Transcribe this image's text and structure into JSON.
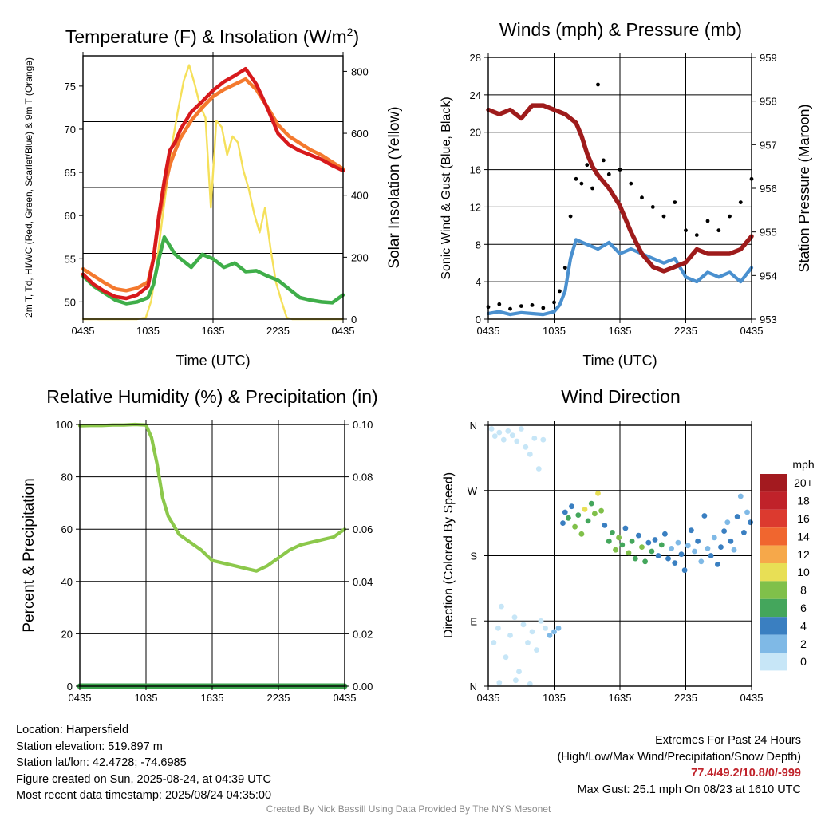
{
  "chart_data": [
    {
      "type": "line",
      "title": "Temperature (F) & Insolation (W/m²)",
      "xlabel": "Time (UTC)",
      "ylabel": "2m T, Td, HI/WC (Red, Green, Scarlet/Blue) & 9m T (Orange)",
      "ylabel2": "Solar Insolation (Yellow)",
      "x_ticks": [
        "0435",
        "1035",
        "1635",
        "2235",
        "0435"
      ],
      "y_ticks": [
        50,
        55,
        60,
        65,
        70,
        75
      ],
      "y2_ticks": [
        0,
        200,
        400,
        600,
        800
      ],
      "ylim": [
        48,
        78.5
      ],
      "y2lim": [
        0,
        850
      ],
      "series": [
        {
          "name": "2m T",
          "axis": "left",
          "color": "#d7191c",
          "x": [
            0,
            1,
            2,
            3,
            4,
            5,
            6,
            6.5,
            7,
            7.5,
            8,
            8.5,
            9,
            10,
            11,
            12,
            13,
            14,
            15,
            16,
            17,
            18,
            19,
            20,
            21,
            22,
            23,
            24
          ],
          "y": [
            53.2,
            52.0,
            51.2,
            50.6,
            50.4,
            50.8,
            51.8,
            55,
            60,
            64,
            67.5,
            68.5,
            70,
            72,
            73.2,
            74.5,
            75.5,
            76.2,
            77.0,
            75.2,
            72.5,
            69.5,
            68.2,
            67.5,
            67.0,
            66.5,
            65.8,
            65.2
          ]
        },
        {
          "name": "9m T",
          "axis": "left",
          "color": "#f4792e",
          "x": [
            0,
            1,
            2,
            3,
            4,
            5,
            6,
            6.5,
            7,
            7.5,
            8,
            8.5,
            9,
            10,
            11,
            12,
            13,
            14,
            15,
            16,
            17,
            18,
            19,
            20,
            21,
            22,
            23,
            24
          ],
          "y": [
            53.8,
            53.0,
            52.2,
            51.5,
            51.3,
            51.6,
            52.3,
            55,
            59.5,
            63.0,
            65.8,
            67.5,
            69.0,
            71.0,
            72.5,
            73.8,
            74.6,
            75.2,
            75.8,
            74.6,
            72.6,
            70.5,
            69.2,
            68.4,
            67.6,
            67.0,
            66.2,
            65.4
          ]
        },
        {
          "name": "Td",
          "axis": "left",
          "color": "#3fae49",
          "x": [
            0,
            1,
            2,
            3,
            4,
            5,
            6,
            6.5,
            7,
            7.5,
            8,
            8.5,
            9,
            10,
            11,
            12,
            13,
            14,
            15,
            16,
            17,
            18,
            19,
            20,
            21,
            22,
            23,
            24
          ],
          "y": [
            53.0,
            51.8,
            51.0,
            50.2,
            49.8,
            50.0,
            50.5,
            52,
            55,
            57.5,
            56.5,
            55.5,
            55.0,
            54.0,
            55.5,
            55.0,
            54.0,
            54.5,
            53.5,
            53.6,
            53.0,
            52.5,
            51.5,
            50.5,
            50.2,
            50.0,
            49.9,
            50.8
          ]
        },
        {
          "name": "Solar Insolation",
          "axis": "right",
          "color": "#f5e05a",
          "x": [
            0,
            5,
            5.8,
            6.3,
            6.8,
            7.3,
            7.8,
            8.3,
            8.8,
            9.3,
            9.8,
            10.3,
            10.8,
            11.3,
            11.8,
            12.3,
            12.8,
            13.3,
            13.8,
            14.3,
            14.8,
            15.3,
            15.8,
            16.3,
            16.8,
            17.3,
            17.8,
            18.3,
            18.8,
            19.3,
            19.8,
            24
          ],
          "y": [
            0,
            0,
            5,
            60,
            180,
            320,
            450,
            580,
            680,
            770,
            820,
            760,
            690,
            650,
            360,
            640,
            620,
            530,
            590,
            570,
            480,
            420,
            340,
            280,
            360,
            230,
            120,
            60,
            5,
            0,
            0,
            0
          ]
        }
      ]
    },
    {
      "type": "line",
      "title": "Winds (mph) & Pressure (mb)",
      "xlabel": "Time (UTC)",
      "ylabel": "Sonic Wind & Gust (Blue, Black)",
      "ylabel2": "Station Pressure (Maroon)",
      "x_ticks": [
        "0435",
        "1035",
        "1635",
        "2235",
        "0435"
      ],
      "y_ticks": [
        0,
        4,
        8,
        12,
        16,
        20,
        24,
        28
      ],
      "y2_ticks": [
        953,
        954,
        955,
        956,
        957,
        958,
        959
      ],
      "ylim": [
        0,
        28
      ],
      "y2lim": [
        953,
        959
      ],
      "series": [
        {
          "name": "Sonic Wind",
          "axis": "left",
          "color": "#4a90cf",
          "x": [
            0,
            1,
            2,
            3,
            4,
            5,
            6,
            6.5,
            7,
            7.5,
            8,
            9,
            10,
            11,
            12,
            13,
            14,
            15,
            16,
            17,
            18,
            19,
            20,
            21,
            22,
            23,
            24
          ],
          "y": [
            0.6,
            0.8,
            0.5,
            0.7,
            0.6,
            0.5,
            0.8,
            1.5,
            3.0,
            6.5,
            8.5,
            8.0,
            7.5,
            8.2,
            7.0,
            7.5,
            7.0,
            6.5,
            6.0,
            6.5,
            4.5,
            4.0,
            5.0,
            4.5,
            5.0,
            4.0,
            5.5
          ]
        },
        {
          "name": "Gust",
          "axis": "left",
          "color": "#000000",
          "x": [
            0,
            1,
            2,
            3,
            4,
            5,
            6,
            6.5,
            7,
            7.5,
            8,
            8.5,
            9,
            9.5,
            10,
            10.5,
            11,
            12,
            13,
            14,
            15,
            16,
            17,
            18,
            19,
            20,
            21,
            22,
            23,
            24
          ],
          "y": [
            1.3,
            1.6,
            1.1,
            1.4,
            1.5,
            1.2,
            1.8,
            3.0,
            5.5,
            11.0,
            15.0,
            14.5,
            16.5,
            14.0,
            25.1,
            17.0,
            15.5,
            16.0,
            14.5,
            13.0,
            12.0,
            11.0,
            12.5,
            9.5,
            9.0,
            10.5,
            9.5,
            11.0,
            12.5,
            15.0
          ]
        },
        {
          "name": "Station Pressure",
          "axis": "right",
          "color": "#9e1b1b",
          "x": [
            0,
            1,
            2,
            3,
            4,
            5,
            6,
            7,
            8,
            8.5,
            9,
            9.5,
            10,
            11,
            12,
            13,
            14,
            15,
            16,
            17,
            18,
            19,
            20,
            21,
            22,
            23,
            24
          ],
          "y": [
            957.8,
            957.7,
            957.8,
            957.6,
            957.9,
            957.9,
            957.8,
            957.7,
            957.5,
            957.2,
            956.8,
            956.5,
            956.3,
            956.0,
            955.6,
            955.0,
            954.5,
            954.2,
            954.1,
            954.2,
            954.3,
            954.6,
            954.5,
            954.5,
            954.5,
            954.6,
            954.9
          ]
        }
      ]
    },
    {
      "type": "line",
      "title": "Relative Humidity (%) & Precipitation (in)",
      "xlabel": "",
      "ylabel": "Percent & Precipitation",
      "x_ticks": [
        "0435",
        "1035",
        "1635",
        "2235",
        "0435"
      ],
      "y_ticks": [
        0,
        20,
        40,
        60,
        80,
        100
      ],
      "y2_ticks": [
        "0.00",
        "0.02",
        "0.04",
        "0.06",
        "0.08",
        "0.10"
      ],
      "ylim": [
        0,
        100
      ],
      "y2lim": [
        0,
        0.1
      ],
      "series": [
        {
          "name": "Relative Humidity",
          "axis": "left",
          "color": "#8cc84b",
          "x": [
            0,
            1,
            2,
            3,
            4,
            5,
            6,
            6.5,
            7,
            7.5,
            8,
            9,
            10,
            11,
            12,
            13,
            14,
            15,
            16,
            17,
            18,
            19,
            20,
            21,
            22,
            23,
            24
          ],
          "y": [
            99.5,
            99.6,
            99.6,
            99.8,
            99.8,
            100,
            99.8,
            95,
            85,
            72,
            65,
            58,
            55,
            52,
            48,
            47,
            46,
            45,
            44,
            46,
            49,
            52,
            54,
            55,
            56,
            57,
            60
          ]
        },
        {
          "name": "Precipitation",
          "axis": "right",
          "color": "#3aa14a",
          "x": [
            0,
            24
          ],
          "y": [
            0,
            0
          ]
        }
      ]
    },
    {
      "type": "scatter",
      "title": "Wind Direction",
      "xlabel": "",
      "ylabel": "Direction (Colored By Speed)",
      "x_ticks": [
        "0435",
        "1035",
        "1635",
        "2235",
        "0435"
      ],
      "y_tick_labels": [
        "N",
        "E",
        "S",
        "W",
        "N"
      ],
      "ylim": [
        0,
        360
      ],
      "colorbar": {
        "title": "mph",
        "labels": [
          "20+",
          "18",
          "16",
          "14",
          "12",
          "10",
          "8",
          "6",
          "4",
          "2",
          "0"
        ],
        "colors": [
          "#a31a1f",
          "#c0222a",
          "#dc3a2f",
          "#f0662f",
          "#f6a84a",
          "#e8df55",
          "#80c04a",
          "#44a65c",
          "#3a7fc1",
          "#7fb9e6",
          "#c7e6f7"
        ]
      },
      "points": [
        {
          "x": 0.3,
          "y": 355,
          "s": 0.5
        },
        {
          "x": 0.6,
          "y": 345,
          "s": 0.6
        },
        {
          "x": 1.0,
          "y": 350,
          "s": 0.5
        },
        {
          "x": 1.4,
          "y": 340,
          "s": 0.8
        },
        {
          "x": 1.8,
          "y": 352,
          "s": 0.5
        },
        {
          "x": 2.2,
          "y": 346,
          "s": 0.7
        },
        {
          "x": 2.6,
          "y": 338,
          "s": 0.6
        },
        {
          "x": 3.0,
          "y": 355,
          "s": 0.5
        },
        {
          "x": 3.4,
          "y": 330,
          "s": 0.9
        },
        {
          "x": 3.8,
          "y": 320,
          "s": 0.7
        },
        {
          "x": 4.2,
          "y": 342,
          "s": 0.5
        },
        {
          "x": 4.6,
          "y": 300,
          "s": 0.8
        },
        {
          "x": 5.0,
          "y": 340,
          "s": 0.6
        },
        {
          "x": 0.5,
          "y": 60,
          "s": 0.6
        },
        {
          "x": 0.9,
          "y": 80,
          "s": 0.7
        },
        {
          "x": 1.2,
          "y": 110,
          "s": 0.5
        },
        {
          "x": 1.6,
          "y": 40,
          "s": 0.8
        },
        {
          "x": 2.0,
          "y": 70,
          "s": 0.6
        },
        {
          "x": 2.4,
          "y": 95,
          "s": 0.5
        },
        {
          "x": 2.8,
          "y": 20,
          "s": 0.7
        },
        {
          "x": 3.2,
          "y": 85,
          "s": 0.6
        },
        {
          "x": 3.6,
          "y": 60,
          "s": 0.9
        },
        {
          "x": 4.0,
          "y": 75,
          "s": 0.5
        },
        {
          "x": 4.4,
          "y": 50,
          "s": 0.7
        },
        {
          "x": 4.8,
          "y": 90,
          "s": 0.6
        },
        {
          "x": 5.2,
          "y": 80,
          "s": 0.8
        },
        {
          "x": 5.6,
          "y": 70,
          "s": 1.2
        },
        {
          "x": 6.0,
          "y": 75,
          "s": 1.0
        },
        {
          "x": 6.4,
          "y": 80,
          "s": 1.3
        },
        {
          "x": 1.0,
          "y": 5,
          "s": 0.5
        },
        {
          "x": 2.5,
          "y": 8,
          "s": 0.6
        },
        {
          "x": 3.8,
          "y": 3,
          "s": 0.4
        },
        {
          "x": 6.8,
          "y": 225,
          "s": 3.5
        },
        {
          "x": 7.0,
          "y": 240,
          "s": 4.5
        },
        {
          "x": 7.3,
          "y": 232,
          "s": 6.2
        },
        {
          "x": 7.6,
          "y": 248,
          "s": 4.8
        },
        {
          "x": 7.9,
          "y": 220,
          "s": 7.5
        },
        {
          "x": 8.2,
          "y": 236,
          "s": 5.6
        },
        {
          "x": 8.5,
          "y": 210,
          "s": 8.4
        },
        {
          "x": 8.8,
          "y": 244,
          "s": 9.1
        },
        {
          "x": 9.1,
          "y": 228,
          "s": 5.2
        },
        {
          "x": 9.4,
          "y": 252,
          "s": 6.8
        },
        {
          "x": 9.7,
          "y": 238,
          "s": 8.2
        },
        {
          "x": 10.0,
          "y": 266,
          "s": 10.5
        },
        {
          "x": 10.3,
          "y": 242,
          "s": 7.2
        },
        {
          "x": 10.6,
          "y": 222,
          "s": 4.6
        },
        {
          "x": 11.0,
          "y": 200,
          "s": 6.5
        },
        {
          "x": 11.3,
          "y": 212,
          "s": 5.5
        },
        {
          "x": 11.6,
          "y": 188,
          "s": 7.0
        },
        {
          "x": 11.9,
          "y": 205,
          "s": 8.5
        },
        {
          "x": 12.2,
          "y": 195,
          "s": 6.0
        },
        {
          "x": 12.5,
          "y": 218,
          "s": 4.5
        },
        {
          "x": 12.8,
          "y": 184,
          "s": 7.5
        },
        {
          "x": 13.1,
          "y": 200,
          "s": 5.8
        },
        {
          "x": 13.4,
          "y": 176,
          "s": 6.6
        },
        {
          "x": 13.7,
          "y": 208,
          "s": 4.2
        },
        {
          "x": 14.0,
          "y": 192,
          "s": 8.0
        },
        {
          "x": 14.3,
          "y": 172,
          "s": 5.4
        },
        {
          "x": 14.6,
          "y": 198,
          "s": 3.8
        },
        {
          "x": 14.9,
          "y": 186,
          "s": 6.2
        },
        {
          "x": 15.2,
          "y": 202,
          "s": 4.5
        },
        {
          "x": 15.5,
          "y": 180,
          "s": 3.5
        },
        {
          "x": 15.8,
          "y": 195,
          "s": 5.5
        },
        {
          "x": 16.1,
          "y": 210,
          "s": 3.2
        },
        {
          "x": 16.4,
          "y": 176,
          "s": 4.8
        },
        {
          "x": 16.7,
          "y": 190,
          "s": 2.8
        },
        {
          "x": 17.0,
          "y": 170,
          "s": 3.6
        },
        {
          "x": 17.3,
          "y": 198,
          "s": 2.6
        },
        {
          "x": 17.6,
          "y": 182,
          "s": 3.4
        },
        {
          "x": 17.9,
          "y": 160,
          "s": 3.0
        },
        {
          "x": 18.2,
          "y": 194,
          "s": 2.5
        },
        {
          "x": 18.5,
          "y": 215,
          "s": 3.2
        },
        {
          "x": 18.8,
          "y": 186,
          "s": 2.9
        },
        {
          "x": 19.1,
          "y": 200,
          "s": 3.5
        },
        {
          "x": 19.4,
          "y": 172,
          "s": 2.4
        },
        {
          "x": 19.7,
          "y": 235,
          "s": 3.1
        },
        {
          "x": 20.0,
          "y": 190,
          "s": 2.7
        },
        {
          "x": 20.3,
          "y": 180,
          "s": 3.9
        },
        {
          "x": 20.6,
          "y": 205,
          "s": 2.5
        },
        {
          "x": 20.9,
          "y": 168,
          "s": 3.0
        },
        {
          "x": 21.2,
          "y": 192,
          "s": 4.2
        },
        {
          "x": 21.5,
          "y": 214,
          "s": 3.4
        },
        {
          "x": 21.8,
          "y": 226,
          "s": 2.6
        },
        {
          "x": 22.1,
          "y": 200,
          "s": 3.8
        },
        {
          "x": 22.4,
          "y": 188,
          "s": 2.8
        },
        {
          "x": 22.7,
          "y": 234,
          "s": 4.4
        },
        {
          "x": 23.0,
          "y": 262,
          "s": 2.4
        },
        {
          "x": 23.3,
          "y": 212,
          "s": 3.6
        },
        {
          "x": 23.6,
          "y": 240,
          "s": 2.9
        },
        {
          "x": 23.9,
          "y": 226,
          "s": 4.0
        }
      ]
    }
  ],
  "info": {
    "location": "Location: Harpersfield",
    "elevation": "Station elevation: 519.897 m",
    "latlon": "Station lat/lon: 42.4728; -74.6985",
    "created": "Figure created on Sun, 2025-08-24, at 04:39 UTC",
    "recent": "Most recent data timestamp: 2025/08/24 04:35:00"
  },
  "extremes": {
    "title": "Extremes For Past 24 Hours",
    "subtitle": "(High/Low/Max Wind/Precipitation/Snow Depth)",
    "values": "77.4/49.2/10.8/0/-999",
    "gust": "Max Gust: 25.1 mph On 08/23 at 1610 UTC"
  },
  "credit": "Created By Nick Bassill Using Data Provided By The NYS Mesonet"
}
